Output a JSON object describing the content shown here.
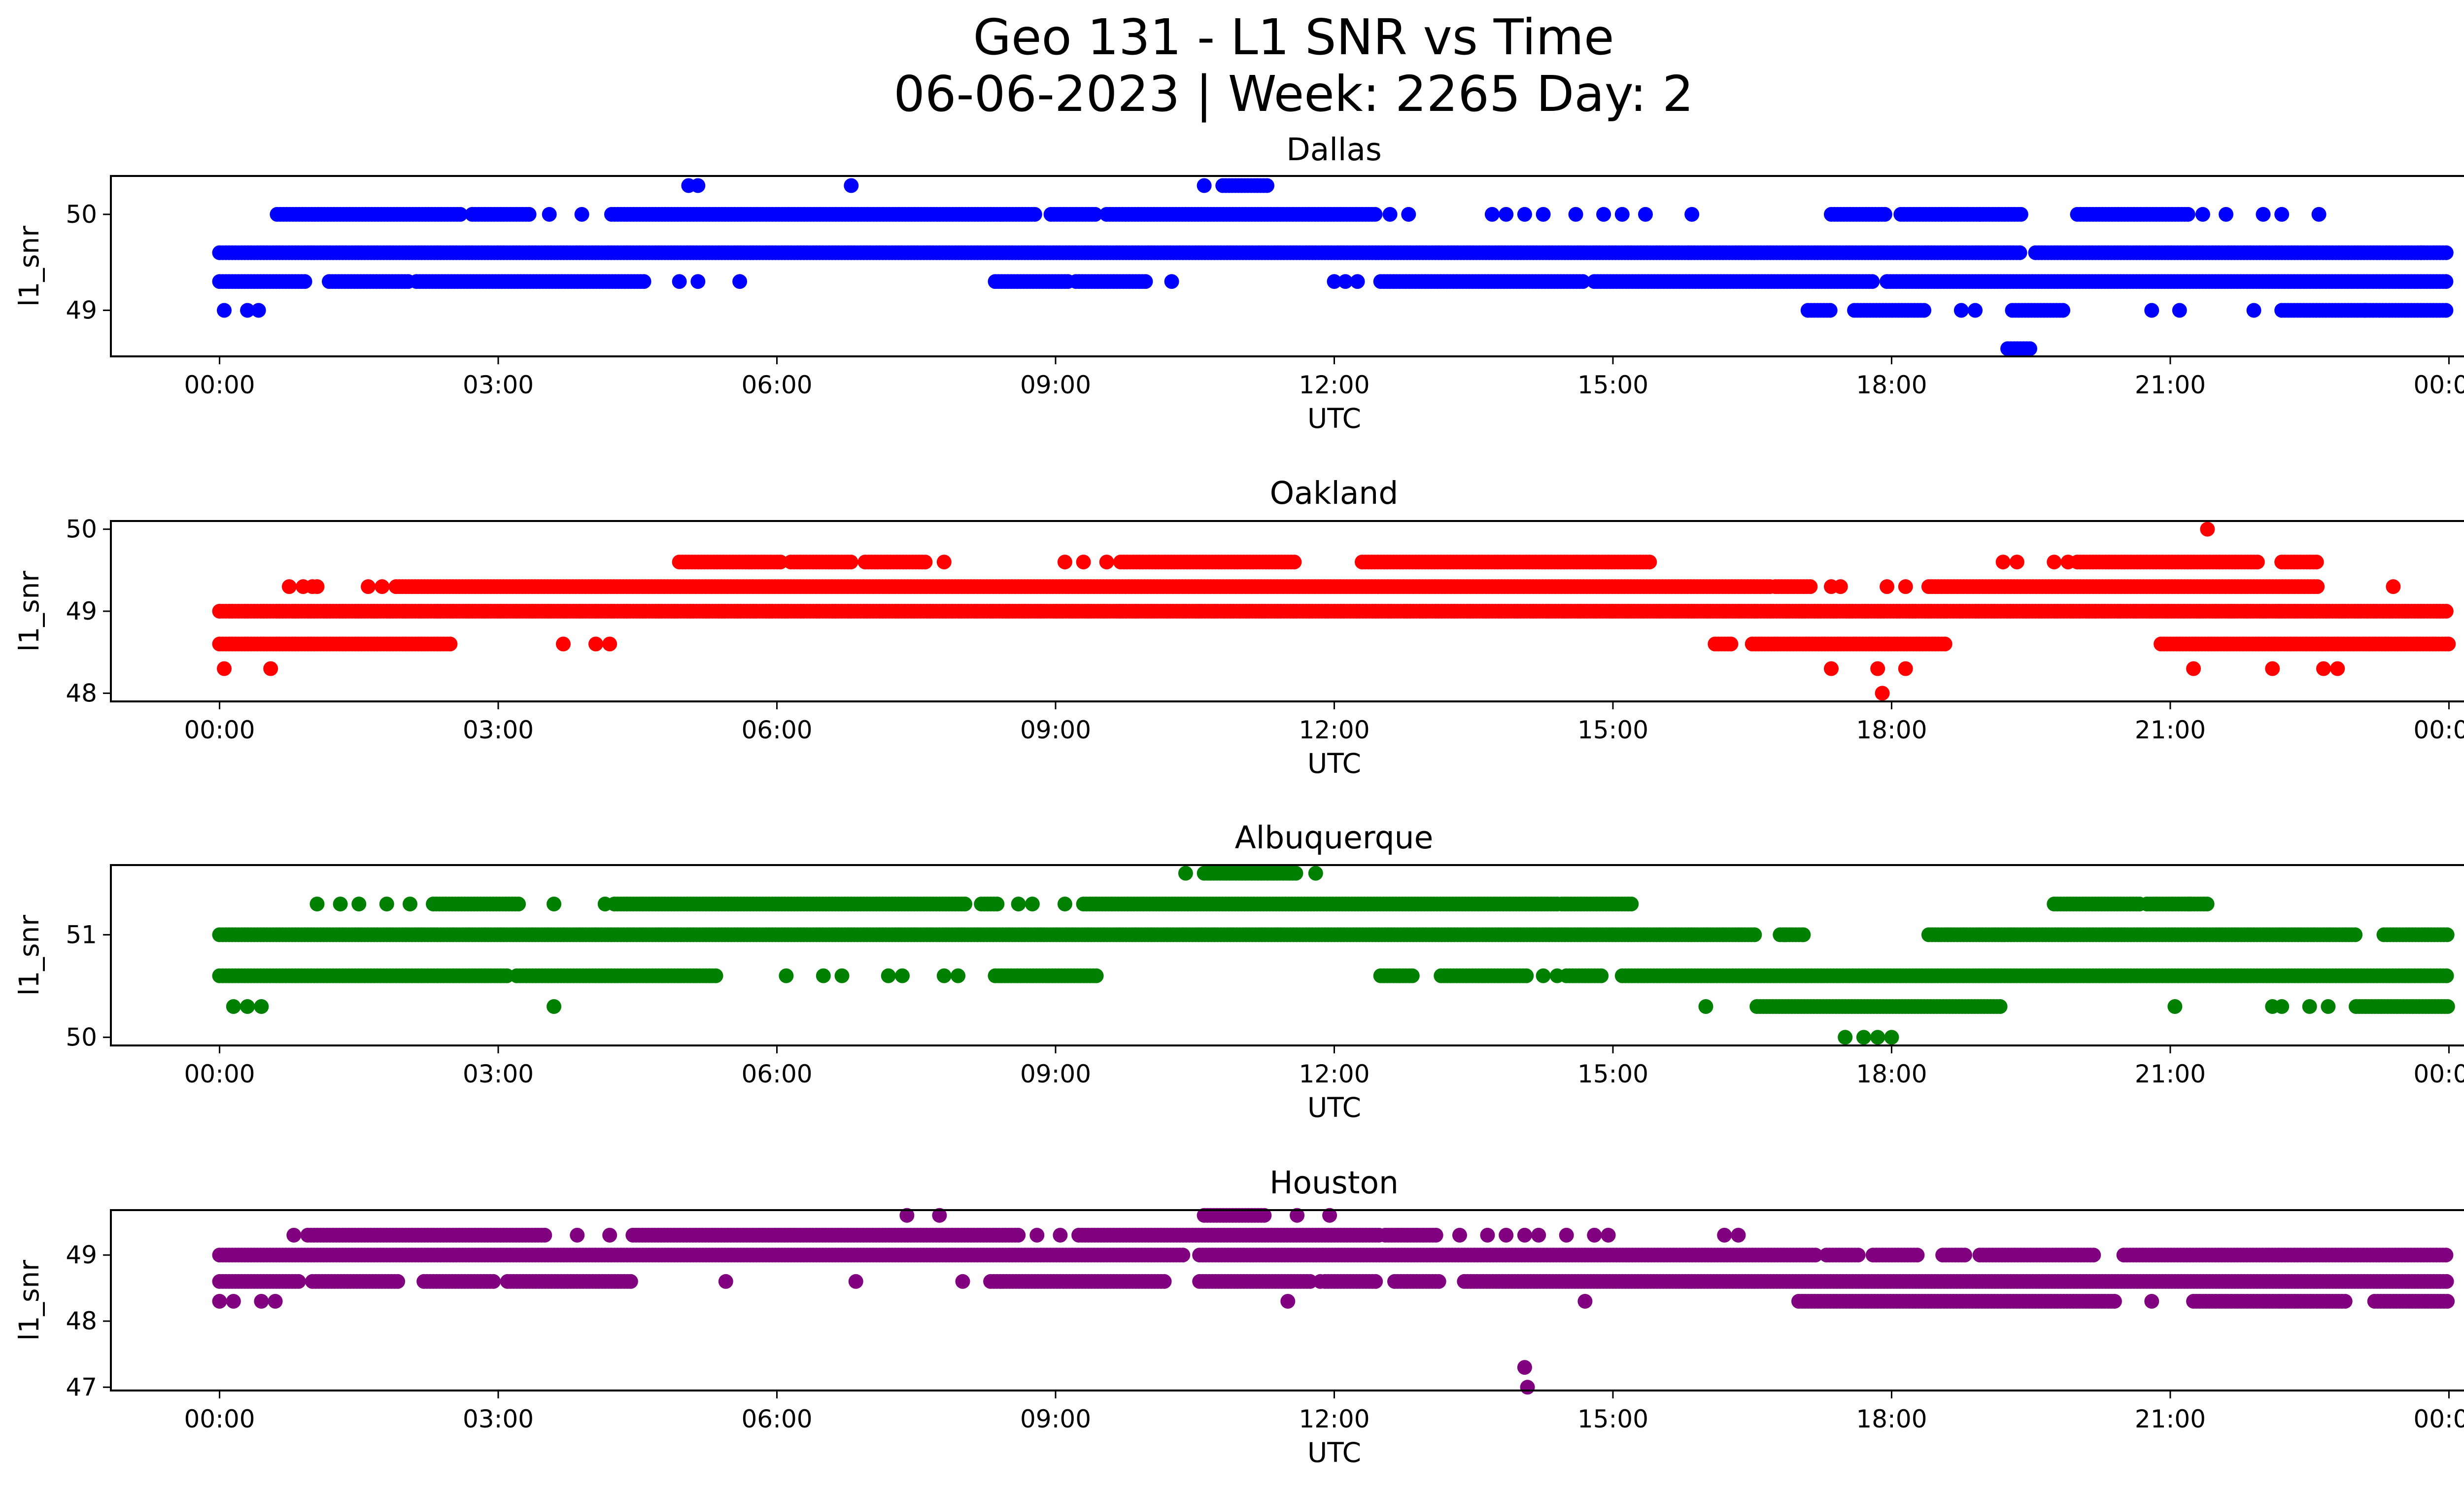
{
  "figure": {
    "title_line1": "Geo 131 - L1 SNR vs Time",
    "title_line2": "06-06-2023 | Week: 2265 Day: 2"
  },
  "chart_data": [
    {
      "type": "scatter",
      "title": "Dallas",
      "xlabel": "UTC",
      "ylabel": "l1_snr",
      "color": "#0000ff",
      "xlim_hours": [
        -1.17,
        25.17
      ],
      "ylim": [
        48.52,
        50.4
      ],
      "xticks": [
        "00:00",
        "03:00",
        "06:00",
        "09:00",
        "12:00",
        "15:00",
        "18:00",
        "21:00",
        "00:00"
      ],
      "yticks": [
        49,
        50
      ],
      "levels": [
        {
          "y": 49.6,
          "segments": [
            [
              0.0,
              19.38
            ],
            [
              19.55,
              24.0
            ]
          ]
        },
        {
          "y": 49.3,
          "segments": [
            [
              0.0,
              0.95
            ],
            [
              1.18,
              2.05
            ],
            [
              2.12,
              4.6
            ],
            [
              8.35,
              9.15
            ],
            [
              9.22,
              10.0
            ],
            [
              12.5,
              14.7
            ],
            [
              14.8,
              17.8
            ],
            [
              17.95,
              24.0
            ]
          ]
        },
        {
          "y": 50.0,
          "segments": [
            [
              0.62,
              2.6
            ],
            [
              2.72,
              3.35
            ],
            [
              4.22,
              8.8
            ],
            [
              8.95,
              9.45
            ],
            [
              9.55,
              12.45
            ],
            [
              17.35,
              17.95
            ],
            [
              18.1,
              19.4
            ],
            [
              20.0,
              21.2
            ]
          ]
        },
        {
          "y": 49.0,
          "segments": [
            [
              17.1,
              17.35
            ],
            [
              17.6,
              18.35
            ],
            [
              19.3,
              19.85
            ],
            [
              22.2,
              24.0
            ]
          ]
        },
        {
          "y": 48.6,
          "segments": [
            [
              19.25,
              19.5
            ]
          ]
        },
        {
          "y": 50.3,
          "segments": [
            [
              10.8,
              11.3
            ]
          ]
        }
      ],
      "points": [
        [
          0.05,
          49.0
        ],
        [
          0.3,
          49.0
        ],
        [
          0.42,
          49.0
        ],
        [
          4.95,
          49.3
        ],
        [
          5.15,
          49.3
        ],
        [
          5.6,
          49.3
        ],
        [
          10.25,
          49.3
        ],
        [
          12.0,
          49.3
        ],
        [
          12.12,
          49.3
        ],
        [
          12.25,
          49.3
        ],
        [
          3.55,
          50.0
        ],
        [
          3.9,
          50.0
        ],
        [
          12.6,
          50.0
        ],
        [
          12.8,
          50.0
        ],
        [
          13.7,
          50.0
        ],
        [
          13.85,
          50.0
        ],
        [
          14.05,
          50.0
        ],
        [
          14.25,
          50.0
        ],
        [
          14.6,
          50.0
        ],
        [
          14.9,
          50.0
        ],
        [
          15.1,
          50.0
        ],
        [
          15.35,
          50.0
        ],
        [
          15.85,
          50.0
        ],
        [
          18.95,
          50.0
        ],
        [
          21.35,
          50.0
        ],
        [
          21.6,
          50.0
        ],
        [
          22.0,
          50.0
        ],
        [
          22.2,
          50.0
        ],
        [
          22.6,
          50.0
        ],
        [
          18.75,
          49.0
        ],
        [
          18.9,
          49.0
        ],
        [
          20.8,
          49.0
        ],
        [
          21.1,
          49.0
        ],
        [
          21.9,
          49.0
        ],
        [
          23.1,
          49.0
        ],
        [
          23.7,
          49.6
        ],
        [
          5.05,
          50.3
        ],
        [
          5.15,
          50.3
        ],
        [
          6.8,
          50.3
        ],
        [
          10.6,
          50.3
        ]
      ]
    },
    {
      "type": "scatter",
      "title": "Oakland",
      "xlabel": "UTC",
      "ylabel": "l1_snr",
      "color": "#ff0000",
      "xlim_hours": [
        -1.17,
        25.17
      ],
      "ylim": [
        47.9,
        50.1
      ],
      "xticks": [
        "00:00",
        "03:00",
        "06:00",
        "09:00",
        "12:00",
        "15:00",
        "18:00",
        "21:00",
        "00:00"
      ],
      "yticks": [
        48,
        49,
        50
      ],
      "levels": [
        {
          "y": 49.0,
          "segments": [
            [
              0.0,
              24.0
            ]
          ]
        },
        {
          "y": 49.3,
          "segments": [
            [
              1.9,
              16.7
            ],
            [
              16.75,
              17.15
            ],
            [
              18.4,
              22.6
            ]
          ]
        },
        {
          "y": 48.6,
          "segments": [
            [
              0.0,
              2.5
            ],
            [
              16.1,
              16.3
            ],
            [
              16.5,
              18.6
            ],
            [
              20.9,
              24.0
            ]
          ]
        },
        {
          "y": 49.6,
          "segments": [
            [
              4.95,
              6.05
            ],
            [
              6.15,
              6.8
            ],
            [
              6.95,
              7.6
            ],
            [
              9.7,
              11.6
            ],
            [
              12.3,
              15.4
            ],
            [
              20.0,
              21.95
            ],
            [
              22.2,
              22.6
            ]
          ]
        }
      ],
      "points": [
        [
          0.05,
          48.3
        ],
        [
          0.55,
          48.3
        ],
        [
          3.7,
          48.6
        ],
        [
          4.05,
          48.6
        ],
        [
          4.2,
          48.6
        ],
        [
          0.75,
          49.3
        ],
        [
          0.9,
          49.3
        ],
        [
          1.0,
          49.3
        ],
        [
          1.05,
          49.3
        ],
        [
          1.6,
          49.3
        ],
        [
          1.75,
          49.3
        ],
        [
          17.35,
          49.3
        ],
        [
          17.45,
          49.3
        ],
        [
          17.95,
          49.3
        ],
        [
          18.15,
          49.3
        ],
        [
          23.4,
          49.3
        ],
        [
          7.8,
          49.6
        ],
        [
          9.1,
          49.6
        ],
        [
          9.3,
          49.6
        ],
        [
          9.55,
          49.6
        ],
        [
          19.2,
          49.6
        ],
        [
          19.35,
          49.6
        ],
        [
          19.75,
          49.6
        ],
        [
          19.9,
          49.6
        ],
        [
          17.35,
          48.3
        ],
        [
          17.85,
          48.3
        ],
        [
          18.15,
          48.3
        ],
        [
          21.25,
          48.3
        ],
        [
          22.1,
          48.3
        ],
        [
          22.65,
          48.3
        ],
        [
          22.8,
          48.3
        ],
        [
          17.9,
          48.0
        ],
        [
          21.4,
          50.0
        ]
      ]
    },
    {
      "type": "scatter",
      "title": "Albuquerque",
      "xlabel": "UTC",
      "ylabel": "l1_snr",
      "color": "#008000",
      "xlim_hours": [
        -1.17,
        25.17
      ],
      "ylim": [
        49.92,
        51.68
      ],
      "xticks": [
        "00:00",
        "03:00",
        "06:00",
        "09:00",
        "12:00",
        "15:00",
        "18:00",
        "21:00",
        "00:00"
      ],
      "yticks": [
        50,
        51
      ],
      "levels": [
        {
          "y": 51.0,
          "segments": [
            [
              0.0,
              16.55
            ],
            [
              16.8,
              17.05
            ],
            [
              18.4,
              23.0
            ],
            [
              23.3,
              24.0
            ]
          ]
        },
        {
          "y": 50.6,
          "segments": [
            [
              0.0,
              3.1
            ],
            [
              3.2,
              5.35
            ],
            [
              8.35,
              9.45
            ],
            [
              12.5,
              12.85
            ],
            [
              13.15,
              14.1
            ],
            [
              14.5,
              14.9
            ],
            [
              15.1,
              24.0
            ]
          ]
        },
        {
          "y": 51.3,
          "segments": [
            [
              2.3,
              3.25
            ],
            [
              4.25,
              8.05
            ],
            [
              8.2,
              8.4
            ],
            [
              9.3,
              14.4
            ],
            [
              14.45,
              15.2
            ],
            [
              19.75,
              20.7
            ],
            [
              20.75,
              21.4
            ]
          ]
        },
        {
          "y": 50.3,
          "segments": [
            [
              16.55,
              19.2
            ],
            [
              23.0,
              24.0
            ]
          ]
        },
        {
          "y": 51.6,
          "segments": [
            [
              10.6,
              11.6
            ]
          ]
        }
      ],
      "points": [
        [
          0.15,
          50.3
        ],
        [
          0.3,
          50.3
        ],
        [
          0.45,
          50.3
        ],
        [
          3.6,
          50.3
        ],
        [
          16.0,
          50.3
        ],
        [
          21.05,
          50.3
        ],
        [
          22.1,
          50.3
        ],
        [
          22.2,
          50.3
        ],
        [
          22.5,
          50.3
        ],
        [
          22.7,
          50.3
        ],
        [
          6.1,
          50.6
        ],
        [
          6.5,
          50.6
        ],
        [
          6.7,
          50.6
        ],
        [
          7.2,
          50.6
        ],
        [
          7.35,
          50.6
        ],
        [
          7.8,
          50.6
        ],
        [
          7.95,
          50.6
        ],
        [
          14.25,
          50.6
        ],
        [
          14.4,
          50.6
        ],
        [
          1.05,
          51.3
        ],
        [
          1.3,
          51.3
        ],
        [
          1.5,
          51.3
        ],
        [
          1.8,
          51.3
        ],
        [
          2.05,
          51.3
        ],
        [
          3.6,
          51.3
        ],
        [
          4.15,
          51.3
        ],
        [
          8.6,
          51.3
        ],
        [
          8.75,
          51.3
        ],
        [
          9.1,
          51.3
        ],
        [
          21.2,
          51.3
        ],
        [
          16.85,
          51.0
        ],
        [
          17.05,
          51.0
        ],
        [
          10.4,
          51.6
        ],
        [
          11.8,
          51.6
        ],
        [
          17.5,
          50.0
        ],
        [
          17.7,
          50.0
        ],
        [
          17.85,
          50.0
        ],
        [
          18.0,
          50.0
        ]
      ]
    },
    {
      "type": "scatter",
      "title": "Houston",
      "xlabel": "UTC",
      "ylabel": "l1_snr",
      "color": "#800080",
      "xlim_hours": [
        -1.17,
        25.17
      ],
      "ylim": [
        46.95,
        49.68
      ],
      "xticks": [
        "00:00",
        "03:00",
        "06:00",
        "09:00",
        "12:00",
        "15:00",
        "18:00",
        "21:00",
        "00:00"
      ],
      "yticks": [
        47,
        48,
        49
      ],
      "levels": [
        {
          "y": 49.0,
          "segments": [
            [
              0.0,
              10.4
            ],
            [
              10.55,
              17.2
            ],
            [
              17.3,
              17.65
            ],
            [
              17.8,
              18.3
            ],
            [
              18.55,
              18.8
            ],
            [
              18.95,
              20.2
            ],
            [
              20.5,
              24.0
            ]
          ]
        },
        {
          "y": 48.6,
          "segments": [
            [
              0.0,
              0.85
            ],
            [
              1.0,
              1.95
            ],
            [
              2.2,
              2.95
            ],
            [
              3.1,
              4.45
            ],
            [
              8.3,
              10.2
            ],
            [
              10.55,
              11.75
            ],
            [
              11.9,
              12.45
            ],
            [
              12.65,
              13.15
            ],
            [
              13.4,
              24.0
            ]
          ]
        },
        {
          "y": 49.3,
          "segments": [
            [
              0.95,
              3.5
            ],
            [
              4.45,
              8.6
            ],
            [
              9.25,
              12.5
            ],
            [
              12.55,
              13.1
            ]
          ]
        },
        {
          "y": 48.3,
          "segments": [
            [
              17.0,
              20.4
            ],
            [
              21.25,
              22.9
            ],
            [
              23.2,
              24.0
            ]
          ]
        },
        {
          "y": 49.6,
          "segments": [
            [
              10.6,
              11.25
            ]
          ]
        }
      ],
      "points": [
        [
          0.0,
          48.3
        ],
        [
          0.15,
          48.3
        ],
        [
          0.45,
          48.3
        ],
        [
          0.6,
          48.3
        ],
        [
          11.5,
          48.3
        ],
        [
          14.7,
          48.3
        ],
        [
          20.8,
          48.3
        ],
        [
          5.45,
          48.6
        ],
        [
          6.85,
          48.6
        ],
        [
          8.0,
          48.6
        ],
        [
          11.85,
          48.6
        ],
        [
          0.8,
          49.3
        ],
        [
          3.85,
          49.3
        ],
        [
          4.2,
          49.3
        ],
        [
          8.8,
          49.3
        ],
        [
          9.05,
          49.3
        ],
        [
          13.35,
          49.3
        ],
        [
          13.65,
          49.3
        ],
        [
          13.85,
          49.3
        ],
        [
          14.05,
          49.3
        ],
        [
          14.2,
          49.3
        ],
        [
          14.5,
          49.3
        ],
        [
          14.8,
          49.3
        ],
        [
          14.95,
          49.3
        ],
        [
          16.2,
          49.3
        ],
        [
          16.35,
          49.3
        ],
        [
          7.4,
          49.6
        ],
        [
          7.75,
          49.6
        ],
        [
          11.6,
          49.6
        ],
        [
          11.95,
          49.6
        ],
        [
          14.05,
          47.3
        ],
        [
          14.08,
          47.0
        ]
      ]
    }
  ]
}
